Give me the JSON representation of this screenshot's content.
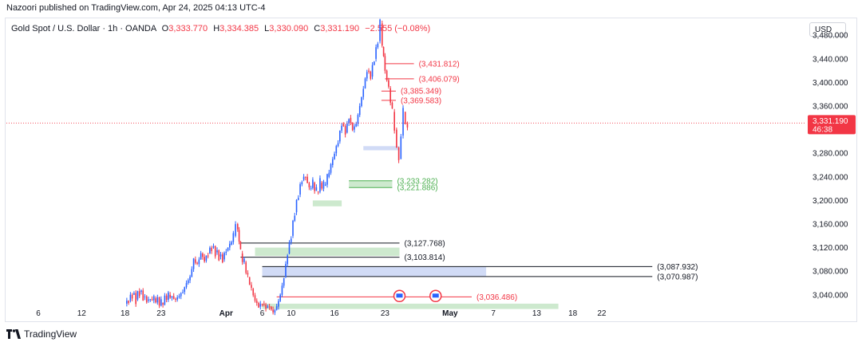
{
  "header": {
    "published": "Nazoori published on TradingView.com, Apr 24, 2025 04:13 UTC-4"
  },
  "legend": {
    "symbol": "Gold Spot / U.S. Dollar · 1h · OANDA",
    "o_label": "O",
    "o": "3,333.770",
    "h_label": "H",
    "h": "3,334.385",
    "l_label": "L",
    "l": "3,330.090",
    "c_label": "C",
    "c": "3,331.190",
    "change": "−2.555 (−0.08%)"
  },
  "currency": "USD",
  "colors": {
    "up": "#2962ff",
    "down": "#f23645",
    "support": "#4caf50",
    "level": "#131722",
    "axis_text": "#131722"
  },
  "chart_data": {
    "type": "candlestick",
    "ylim": [
      3010,
      3510
    ],
    "y_ticks": [
      "3,040.000",
      "3,080.000",
      "3,120.000",
      "3,160.000",
      "3,200.000",
      "3,240.000",
      "3,280.000",
      "3,320.000",
      "3,360.000",
      "3,400.000",
      "3,440.000",
      "3,480.000"
    ],
    "x_ticks": [
      {
        "label": "6",
        "x": 0
      },
      {
        "label": "12",
        "x": 6
      },
      {
        "label": "18",
        "x": 12
      },
      {
        "label": "23",
        "x": 17
      },
      {
        "label": "Apr",
        "x": 26
      },
      {
        "label": "6",
        "x": 31
      },
      {
        "label": "10",
        "x": 35
      },
      {
        "label": "16",
        "x": 41
      },
      {
        "label": "23",
        "x": 48
      },
      {
        "label": "May",
        "x": 57
      },
      {
        "label": "7",
        "x": 63
      },
      {
        "label": "13",
        "x": 69
      },
      {
        "label": "18",
        "x": 74
      },
      {
        "label": "22",
        "x": 78
      }
    ],
    "price_path": [
      [
        12.0,
        3025
      ],
      [
        12.5,
        3030
      ],
      [
        13.0,
        3040
      ],
      [
        13.5,
        3032
      ],
      [
        14.0,
        3045
      ],
      [
        14.5,
        3036
      ],
      [
        15.0,
        3030
      ],
      [
        16.0,
        3034
      ],
      [
        17.0,
        3026
      ],
      [
        18.0,
        3040
      ],
      [
        19.0,
        3032
      ],
      [
        20.0,
        3045
      ],
      [
        20.5,
        3060
      ],
      [
        21.0,
        3070
      ],
      [
        21.5,
        3100
      ],
      [
        22.0,
        3092
      ],
      [
        22.5,
        3110
      ],
      [
        23.0,
        3098
      ],
      [
        23.5,
        3110
      ],
      [
        24.0,
        3120
      ],
      [
        24.5,
        3112
      ],
      [
        25.0,
        3105
      ],
      [
        25.5,
        3100
      ],
      [
        26.0,
        3115
      ],
      [
        26.5,
        3125
      ],
      [
        27.0,
        3140
      ],
      [
        27.3,
        3160
      ],
      [
        27.6,
        3150
      ],
      [
        28.0,
        3110
      ],
      [
        28.5,
        3095
      ],
      [
        29.0,
        3070
      ],
      [
        29.5,
        3050
      ],
      [
        30.0,
        3030
      ],
      [
        30.5,
        3020
      ],
      [
        31.0,
        3025
      ],
      [
        31.5,
        3018
      ],
      [
        32.0,
        3020
      ],
      [
        32.5,
        3010
      ],
      [
        33.0,
        3020
      ],
      [
        33.5,
        3040
      ],
      [
        34.0,
        3070
      ],
      [
        34.5,
        3110
      ],
      [
        35.0,
        3140
      ],
      [
        35.5,
        3180
      ],
      [
        36.0,
        3210
      ],
      [
        36.5,
        3235
      ],
      [
        37.0,
        3240
      ],
      [
        37.5,
        3220
      ],
      [
        38.0,
        3230
      ],
      [
        38.5,
        3215
      ],
      [
        39.0,
        3230
      ],
      [
        39.5,
        3225
      ],
      [
        40.0,
        3240
      ],
      [
        40.5,
        3260
      ],
      [
        41.0,
        3280
      ],
      [
        41.5,
        3300
      ],
      [
        42.0,
        3330
      ],
      [
        42.5,
        3315
      ],
      [
        43.0,
        3340
      ],
      [
        43.5,
        3320
      ],
      [
        44.0,
        3330
      ],
      [
        44.5,
        3360
      ],
      [
        45.0,
        3390
      ],
      [
        45.5,
        3420
      ],
      [
        46.0,
        3410
      ],
      [
        46.5,
        3440
      ],
      [
        47.0,
        3470
      ],
      [
        47.3,
        3500
      ],
      [
        47.6,
        3460
      ],
      [
        48.0,
        3420
      ],
      [
        48.5,
        3390
      ],
      [
        49.0,
        3350
      ],
      [
        49.3,
        3320
      ],
      [
        49.6,
        3290
      ],
      [
        49.9,
        3270
      ],
      [
        50.2,
        3310
      ],
      [
        50.5,
        3350
      ],
      [
        50.8,
        3330
      ],
      [
        51.1,
        3331.19
      ]
    ],
    "levels": [
      {
        "label": "(3,431.812)",
        "value": 3431.812,
        "from": 48,
        "to": 52,
        "color": "#f23645"
      },
      {
        "label": "(3,406.079)",
        "value": 3406.079,
        "from": 48,
        "to": 52,
        "color": "#f23645"
      },
      {
        "label": "(3,385.349)",
        "value": 3385.349,
        "from": 47.5,
        "to": 49.5,
        "color": "#f23645"
      },
      {
        "label": "(3,369.583)",
        "value": 3369.583,
        "from": 47.5,
        "to": 49.5,
        "color": "#f23645"
      },
      {
        "label": "(3,233.282)",
        "value": 3233.282,
        "from": 43,
        "to": 49,
        "color": "#4caf50"
      },
      {
        "label": "(3,221.886)",
        "value": 3221.886,
        "from": 43,
        "to": 49,
        "color": "#4caf50"
      },
      {
        "label": "(3,127.768)",
        "value": 3127.768,
        "from": 28,
        "to": 50,
        "color": "#131722"
      },
      {
        "label": "(3,103.814)",
        "value": 3103.814,
        "from": 28,
        "to": 50,
        "color": "#131722"
      },
      {
        "label": "(3,087.932)",
        "value": 3087.932,
        "from": 31,
        "to": 85,
        "color": "#131722"
      },
      {
        "label": "(3,070.987)",
        "value": 3070.987,
        "from": 31,
        "to": 85,
        "color": "#131722"
      },
      {
        "label": "(3,036.486)",
        "value": 3036.486,
        "from": 33,
        "to": 60,
        "color": "#f23645"
      }
    ],
    "zones": [
      {
        "y1": 3233.282,
        "y2": 3221.886,
        "from": 43,
        "to": 49,
        "color": "#4caf50"
      },
      {
        "y1": 3200,
        "y2": 3190,
        "from": 38,
        "to": 42,
        "color": "#4caf50"
      },
      {
        "y1": 3120,
        "y2": 3106,
        "from": 30,
        "to": 50,
        "color": "#4caf50"
      },
      {
        "y1": 3088,
        "y2": 3071,
        "from": 31,
        "to": 62,
        "color": "#5b7cde"
      },
      {
        "y1": 3292,
        "y2": 3285,
        "from": 45,
        "to": 50,
        "color": "#5b7cde"
      },
      {
        "y1": 3025,
        "y2": 3016,
        "from": 31,
        "to": 72,
        "color": "#4caf50"
      }
    ],
    "current_price": {
      "value": 3331.19,
      "label": "3,331.190",
      "countdown": "46:38"
    }
  }
}
